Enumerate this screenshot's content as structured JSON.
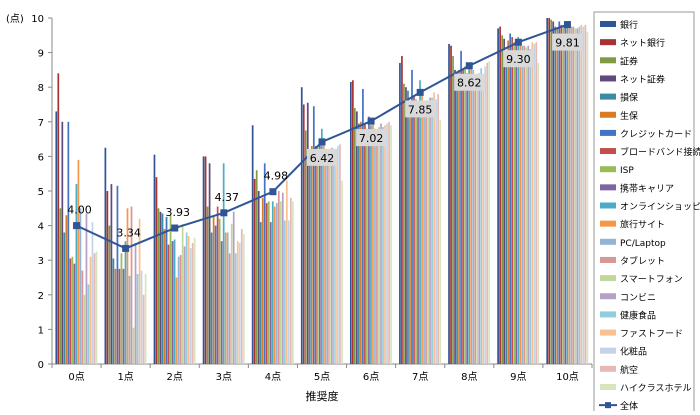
{
  "chart_data": {
    "type": "bar",
    "ylabel": "(点)",
    "xlabel": "推奨度",
    "ylim": [
      0,
      10
    ],
    "yticks": [
      "0",
      "1",
      "2",
      "3",
      "4",
      "5",
      "6",
      "7",
      "8",
      "9",
      "10"
    ],
    "categories": [
      "0点",
      "1点",
      "2点",
      "3点",
      "4点",
      "5点",
      "6点",
      "7点",
      "8点",
      "9点",
      "10点"
    ],
    "series": [
      {
        "name": "銀行",
        "color": "#2F5597",
        "values": [
          7.3,
          6.25,
          6.05,
          6.0,
          6.9,
          8.0,
          8.15,
          8.7,
          9.25,
          9.7,
          10.0
        ]
      },
      {
        "name": "ネット銀行",
        "color": "#A83232",
        "values": [
          8.4,
          5.0,
          5.4,
          6.0,
          5.35,
          7.5,
          8.2,
          8.9,
          9.2,
          9.75,
          10.0
        ]
      },
      {
        "name": "証券",
        "color": "#7F9A41",
        "values": [
          4.5,
          4.0,
          4.5,
          4.55,
          5.6,
          6.75,
          7.4,
          8.1,
          8.9,
          9.5,
          9.95
        ]
      },
      {
        "name": "ネット証券",
        "color": "#5E4A7D",
        "values": [
          7.0,
          5.2,
          4.4,
          5.8,
          5.0,
          7.55,
          7.3,
          8.0,
          8.5,
          9.4,
          9.9
        ]
      },
      {
        "name": "損保",
        "color": "#3A8BA4",
        "values": [
          3.8,
          3.05,
          4.35,
          3.8,
          4.1,
          5.9,
          6.95,
          7.9,
          8.45,
          9.0,
          9.75
        ]
      },
      {
        "name": "生保",
        "color": "#D97A29",
        "values": [
          4.3,
          2.75,
          3.9,
          4.3,
          4.8,
          6.3,
          7.0,
          7.5,
          8.5,
          9.35,
          9.7
        ]
      },
      {
        "name": "クレジットカード",
        "color": "#4472C4",
        "values": [
          7.0,
          5.15,
          4.25,
          4.0,
          5.8,
          7.45,
          7.95,
          8.5,
          9.05,
          9.55,
          9.9
        ]
      },
      {
        "name": "ブロードバンド接続",
        "color": "#C0504D",
        "values": [
          3.05,
          2.75,
          3.45,
          4.55,
          4.65,
          6.3,
          6.95,
          7.75,
          8.5,
          9.45,
          9.8
        ]
      },
      {
        "name": "ISP",
        "color": "#9BBB59",
        "values": [
          3.1,
          3.2,
          4.3,
          4.2,
          4.7,
          6.25,
          6.8,
          7.65,
          8.6,
          9.3,
          9.75
        ]
      },
      {
        "name": "携帯キャリア",
        "color": "#8064A2",
        "values": [
          2.9,
          2.75,
          3.55,
          3.55,
          4.1,
          6.5,
          7.15,
          7.55,
          8.4,
          9.35,
          9.85
        ]
      },
      {
        "name": "オンラインショッピング",
        "color": "#4BACC6",
        "values": [
          5.2,
          3.55,
          3.6,
          5.8,
          4.7,
          6.8,
          6.9,
          8.2,
          8.7,
          9.45,
          9.85
        ]
      },
      {
        "name": "旅行サイト",
        "color": "#F79646",
        "values": [
          5.9,
          4.5,
          2.5,
          3.8,
          4.55,
          6.45,
          6.95,
          7.75,
          8.55,
          9.3,
          9.8
        ]
      },
      {
        "name": "PC/Laptop",
        "color": "#95B3D7",
        "values": [
          4.5,
          2.55,
          3.1,
          3.8,
          4.65,
          6.15,
          6.8,
          7.55,
          8.5,
          9.2,
          9.75
        ]
      },
      {
        "name": "タブレット",
        "color": "#D99694",
        "values": [
          2.7,
          4.55,
          3.15,
          3.2,
          5.0,
          6.05,
          6.75,
          7.5,
          8.2,
          9.2,
          9.75
        ]
      },
      {
        "name": "スマートフォン",
        "color": "#C3D69B",
        "values": [
          2.0,
          1.05,
          4.05,
          4.05,
          4.7,
          6.1,
          6.85,
          7.4,
          8.3,
          9.15,
          9.7
        ]
      },
      {
        "name": "コンビニ",
        "color": "#B3A2C7",
        "values": [
          4.35,
          3.5,
          3.4,
          4.4,
          4.95,
          6.25,
          6.95,
          7.7,
          8.4,
          9.2,
          9.7
        ]
      },
      {
        "name": "健康食品",
        "color": "#93CDDD",
        "values": [
          2.3,
          2.6,
          3.8,
          3.2,
          4.15,
          6.1,
          6.85,
          7.7,
          8.55,
          9.1,
          9.75
        ]
      },
      {
        "name": "ファストフード",
        "color": "#FAC090",
        "values": [
          3.1,
          4.2,
          3.7,
          3.55,
          5.3,
          6.15,
          6.9,
          7.85,
          8.35,
          9.3,
          9.8
        ]
      },
      {
        "name": "化粧品",
        "color": "#C5D3E8",
        "values": [
          4.1,
          2.7,
          3.35,
          3.5,
          4.15,
          6.3,
          6.95,
          7.65,
          8.6,
          9.25,
          9.75
        ]
      },
      {
        "name": "航空",
        "color": "#E6B9B8",
        "values": [
          3.2,
          2.0,
          3.5,
          3.9,
          4.8,
          6.35,
          7.0,
          7.8,
          8.7,
          9.3,
          9.8
        ]
      },
      {
        "name": "ハイクラスホテル",
        "color": "#D7E4BD",
        "values": [
          3.25,
          2.6,
          3.65,
          3.75,
          4.7,
          5.3,
          6.9,
          7.05,
          8.75,
          8.7,
          9.6
        ]
      }
    ],
    "line": {
      "name": "全体",
      "color": "#2F5597",
      "values": [
        4.0,
        3.34,
        3.93,
        4.37,
        4.98,
        6.42,
        7.02,
        7.85,
        8.62,
        9.3,
        9.81
      ],
      "labels": [
        "4.00",
        "3.34",
        "3.93",
        "4.37",
        "4.98",
        "6.42",
        "7.02",
        "7.85",
        "8.62",
        "9.30",
        "9.81"
      ]
    },
    "grid": false,
    "legend": "right"
  }
}
